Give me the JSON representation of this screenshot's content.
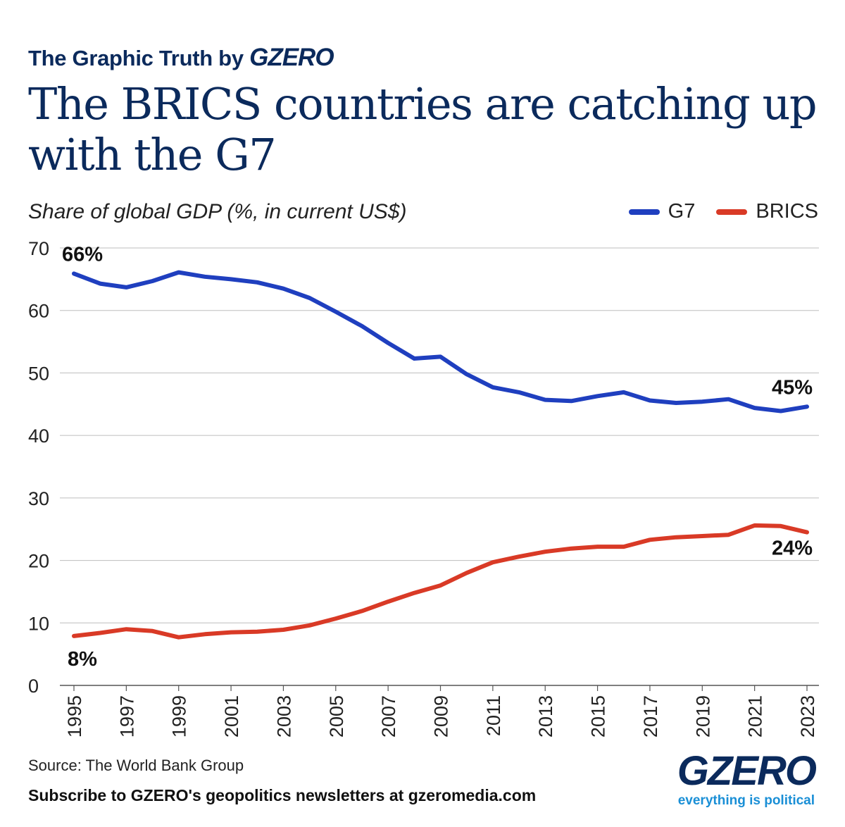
{
  "header": {
    "kicker": "The Graphic Truth by",
    "kicker_brand": "GZERO",
    "title": "The BRICS countries are catching up with the G7"
  },
  "chart_data": {
    "type": "line",
    "subtitle": "Share of global GDP (%, in current US$)",
    "x": [
      1995,
      1996,
      1997,
      1998,
      1999,
      2000,
      2001,
      2002,
      2003,
      2004,
      2005,
      2006,
      2007,
      2008,
      2009,
      2010,
      2011,
      2012,
      2013,
      2014,
      2015,
      2016,
      2017,
      2018,
      2019,
      2020,
      2021,
      2022,
      2023
    ],
    "x_tick_labels": [
      "1995",
      "1997",
      "1999",
      "2001",
      "2003",
      "2005",
      "2007",
      "2009",
      "2011",
      "2013",
      "2015",
      "2017",
      "2019",
      "2021",
      "2023"
    ],
    "ylim": [
      0,
      70
    ],
    "y_ticks": [
      0,
      10,
      20,
      30,
      40,
      50,
      60,
      70
    ],
    "grid": true,
    "legend_position": "top-right",
    "series": [
      {
        "name": "G7",
        "color": "#1f3fbf",
        "values": [
          65.9,
          64.3,
          63.7,
          64.7,
          66.1,
          65.4,
          65.0,
          64.5,
          63.5,
          62.0,
          59.8,
          57.5,
          54.8,
          52.3,
          52.6,
          49.8,
          47.7,
          46.9,
          45.7,
          45.5,
          46.3,
          46.9,
          45.6,
          45.2,
          45.4,
          45.8,
          44.4,
          43.9,
          44.6
        ],
        "start_label": "66%",
        "end_label": "45%"
      },
      {
        "name": "BRICS",
        "color": "#d93a26",
        "values": [
          7.9,
          8.4,
          9.0,
          8.7,
          7.7,
          8.2,
          8.5,
          8.6,
          8.9,
          9.6,
          10.7,
          11.9,
          13.4,
          14.8,
          16.0,
          18.0,
          19.7,
          20.6,
          21.4,
          21.9,
          22.2,
          22.2,
          23.3,
          23.7,
          23.9,
          24.1,
          25.6,
          25.5,
          24.5
        ],
        "start_label": "8%",
        "end_label": "24%"
      }
    ]
  },
  "footer": {
    "source": "Source: The World Bank Group",
    "subscribe": "Subscribe to GZERO's geopolitics newsletters at gzeromedia.com",
    "logo_word": "GZERO",
    "logo_tagline": "everything is political"
  }
}
